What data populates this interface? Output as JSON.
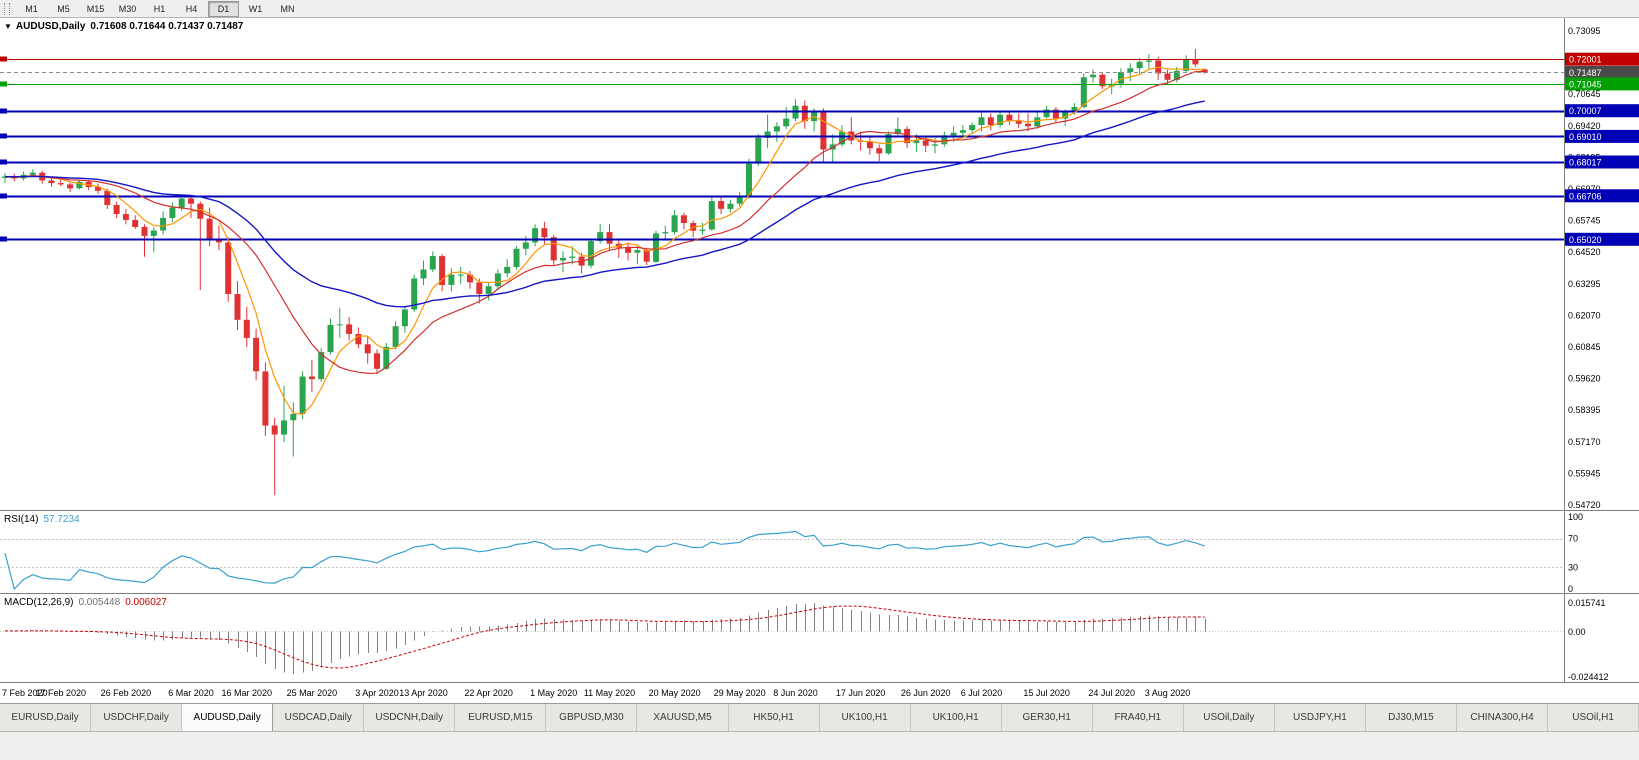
{
  "icons": {
    "dropdown_arrow": "▼"
  },
  "toolbar": {
    "timeframes": [
      "M1",
      "M5",
      "M15",
      "M30",
      "H1",
      "H4",
      "D1",
      "W1",
      "MN"
    ],
    "active": "D1"
  },
  "chart_data": {
    "type": "candlestick",
    "symbol": "AUDUSD",
    "timeframe": "Daily",
    "title": "AUDUSD,Daily",
    "ohlc_text": "0.71608 0.71644 0.71437 0.71487",
    "current": {
      "open": 0.71608,
      "high": 0.71644,
      "low": 0.71437,
      "close": 0.71487
    },
    "colors": {
      "bull": "#2aa44f",
      "bear": "#e03232",
      "background": "#ffffff",
      "axis_text": "#000000"
    },
    "y_axis": {
      "max": 0.73599,
      "min": 0.54526,
      "ticks": [
        "0.73095",
        "0.71870",
        "0.70645",
        "0.69420",
        "0.68195",
        "0.66970",
        "0.65745",
        "0.64520",
        "0.63295",
        "0.62070",
        "0.60845",
        "0.59620",
        "0.58395",
        "0.57170",
        "0.55945",
        "0.54720"
      ]
    },
    "x_labels": [
      {
        "label": "7 Feb 2020",
        "i": 0
      },
      {
        "label": "17 Feb 2020",
        "i": 6
      },
      {
        "label": "26 Feb 2020",
        "i": 13
      },
      {
        "label": "6 Mar 2020",
        "i": 20
      },
      {
        "label": "16 Mar 2020",
        "i": 26
      },
      {
        "label": "25 Mar 2020",
        "i": 33
      },
      {
        "label": "3 Apr 2020",
        "i": 40
      },
      {
        "label": "13 Apr 2020",
        "i": 45
      },
      {
        "label": "22 Apr 2020",
        "i": 52
      },
      {
        "label": "1 May 2020",
        "i": 59
      },
      {
        "label": "11 May 2020",
        "i": 65
      },
      {
        "label": "20 May 2020",
        "i": 72
      },
      {
        "label": "29 May 2020",
        "i": 79
      },
      {
        "label": "8 Jun 2020",
        "i": 85
      },
      {
        "label": "17 Jun 2020",
        "i": 92
      },
      {
        "label": "26 Jun 2020",
        "i": 99
      },
      {
        "label": "6 Jul 2020",
        "i": 105
      },
      {
        "label": "15 Jul 2020",
        "i": 112
      },
      {
        "label": "24 Jul 2020",
        "i": 119
      },
      {
        "label": "3 Aug 2020",
        "i": 125
      }
    ],
    "h_lines": [
      {
        "price": 0.72001,
        "color": "#c00000",
        "width": 1
      },
      {
        "price": 0.71045,
        "color": "#00a000",
        "width": 1
      },
      {
        "price": 0.70007,
        "color": "#0000b4",
        "width": 2
      },
      {
        "price": 0.6901,
        "color": "#0000b4",
        "width": 2
      },
      {
        "price": 0.68017,
        "color": "#0000b4",
        "width": 2
      },
      {
        "price": 0.66706,
        "color": "#0000b4",
        "width": 2
      },
      {
        "price": 0.6502,
        "color": "#0000b4",
        "width": 2
      }
    ],
    "price_badges": [
      {
        "text": "0.72001",
        "price": 0.72001,
        "color": "#c00000"
      },
      {
        "text": "0.71487",
        "price": 0.71487,
        "color": "#4a4a4a"
      },
      {
        "text": "0.71045",
        "price": 0.71045,
        "color": "#00a000"
      },
      {
        "text": "0.70007",
        "price": 0.70007,
        "color": "#0000b4"
      },
      {
        "text": "0.69010",
        "price": 0.6901,
        "color": "#0000b4"
      },
      {
        "text": "0.68017",
        "price": 0.68017,
        "color": "#0000b4"
      },
      {
        "text": "0.66706",
        "price": 0.66706,
        "color": "#0000b4"
      },
      {
        "text": "0.65020",
        "price": 0.6502,
        "color": "#0000b4"
      }
    ],
    "moving_averages": [
      {
        "name": "ma-fast",
        "type": "sma",
        "period": 5,
        "color": "#ff9500",
        "width": 1.2
      },
      {
        "name": "ma-mid",
        "type": "sma",
        "period": 13,
        "color": "#d32f2f",
        "width": 1.2
      },
      {
        "name": "ma-slow",
        "type": "ema",
        "period": 34,
        "color": "#1515c8",
        "width": 1.4
      }
    ],
    "rsi": {
      "label": "RSI(14)",
      "value": "57.7234",
      "period": 14,
      "color": "#3ba0d0",
      "levels": [
        70,
        30
      ],
      "axis_labels": [
        "100",
        "70",
        "30",
        "0"
      ]
    },
    "macd": {
      "label": "MACD(12,26,9)",
      "values": [
        "0.005448",
        "0.006027"
      ],
      "fast": 12,
      "slow": 26,
      "signal_period": 9,
      "hist_color": "#808080",
      "signal_color": "#cc0000",
      "axis_labels": [
        "0.015741",
        "0.00",
        "-0.024412"
      ]
    },
    "candles": [
      [
        0.674,
        0.6758,
        0.672,
        0.6745
      ],
      [
        0.6745,
        0.6756,
        0.6726,
        0.6738
      ],
      [
        0.6738,
        0.6765,
        0.673,
        0.6752
      ],
      [
        0.6752,
        0.6774,
        0.6744,
        0.676
      ],
      [
        0.676,
        0.6768,
        0.6718,
        0.673
      ],
      [
        0.673,
        0.6742,
        0.6705,
        0.672
      ],
      [
        0.672,
        0.6736,
        0.6708,
        0.6715
      ],
      [
        0.6715,
        0.6725,
        0.6685,
        0.67
      ],
      [
        0.67,
        0.6732,
        0.6695,
        0.6725
      ],
      [
        0.6725,
        0.673,
        0.6692,
        0.6705
      ],
      [
        0.6705,
        0.6718,
        0.6678,
        0.669
      ],
      [
        0.669,
        0.6698,
        0.662,
        0.6635
      ],
      [
        0.6635,
        0.6648,
        0.6585,
        0.66
      ],
      [
        0.66,
        0.662,
        0.656,
        0.6577
      ],
      [
        0.6577,
        0.6595,
        0.6542,
        0.655
      ],
      [
        0.655,
        0.656,
        0.6434,
        0.6515
      ],
      [
        0.6515,
        0.6548,
        0.6452,
        0.6536
      ],
      [
        0.6536,
        0.661,
        0.652,
        0.6585
      ],
      [
        0.6585,
        0.6645,
        0.657,
        0.6625
      ],
      [
        0.6625,
        0.6665,
        0.6612,
        0.666
      ],
      [
        0.666,
        0.667,
        0.6585,
        0.664
      ],
      [
        0.664,
        0.6648,
        0.6305,
        0.6582
      ],
      [
        0.6582,
        0.6625,
        0.6475,
        0.65
      ],
      [
        0.65,
        0.6555,
        0.646,
        0.649
      ],
      [
        0.649,
        0.651,
        0.626,
        0.629
      ],
      [
        0.629,
        0.634,
        0.615,
        0.619
      ],
      [
        0.619,
        0.624,
        0.6085,
        0.612
      ],
      [
        0.612,
        0.6155,
        0.5955,
        0.599
      ],
      [
        0.599,
        0.6025,
        0.574,
        0.578
      ],
      [
        0.578,
        0.581,
        0.551,
        0.5745
      ],
      [
        0.5745,
        0.5935,
        0.5715,
        0.58
      ],
      [
        0.58,
        0.587,
        0.566,
        0.5825
      ],
      [
        0.5825,
        0.599,
        0.5805,
        0.597
      ],
      [
        0.597,
        0.6035,
        0.591,
        0.596
      ],
      [
        0.596,
        0.608,
        0.595,
        0.6065
      ],
      [
        0.6065,
        0.6195,
        0.6055,
        0.617
      ],
      [
        0.617,
        0.6235,
        0.612,
        0.6172
      ],
      [
        0.6172,
        0.62,
        0.611,
        0.6135
      ],
      [
        0.6135,
        0.616,
        0.608,
        0.6095
      ],
      [
        0.6095,
        0.6125,
        0.602,
        0.606
      ],
      [
        0.606,
        0.6075,
        0.598,
        0.6
      ],
      [
        0.6,
        0.61,
        0.5995,
        0.6085
      ],
      [
        0.6085,
        0.6185,
        0.6075,
        0.6165
      ],
      [
        0.6165,
        0.6245,
        0.614,
        0.623
      ],
      [
        0.623,
        0.6365,
        0.622,
        0.635
      ],
      [
        0.635,
        0.642,
        0.6325,
        0.6385
      ],
      [
        0.6385,
        0.6455,
        0.6375,
        0.6437
      ],
      [
        0.6437,
        0.6445,
        0.63,
        0.6325
      ],
      [
        0.6325,
        0.639,
        0.63,
        0.6365
      ],
      [
        0.6365,
        0.6395,
        0.633,
        0.6365
      ],
      [
        0.6365,
        0.638,
        0.631,
        0.6335
      ],
      [
        0.6335,
        0.635,
        0.6253,
        0.629
      ],
      [
        0.629,
        0.6335,
        0.6265,
        0.632
      ],
      [
        0.632,
        0.6385,
        0.6305,
        0.637
      ],
      [
        0.637,
        0.6425,
        0.6355,
        0.6395
      ],
      [
        0.6395,
        0.6475,
        0.6385,
        0.6465
      ],
      [
        0.6465,
        0.6515,
        0.644,
        0.649
      ],
      [
        0.649,
        0.656,
        0.6475,
        0.6545
      ],
      [
        0.6545,
        0.657,
        0.648,
        0.651
      ],
      [
        0.651,
        0.652,
        0.64,
        0.642
      ],
      [
        0.642,
        0.6455,
        0.6375,
        0.643
      ],
      [
        0.643,
        0.6475,
        0.6405,
        0.6435
      ],
      [
        0.6435,
        0.645,
        0.637,
        0.64
      ],
      [
        0.64,
        0.6505,
        0.639,
        0.6495
      ],
      [
        0.6495,
        0.656,
        0.6485,
        0.653
      ],
      [
        0.653,
        0.656,
        0.646,
        0.6485
      ],
      [
        0.6485,
        0.6505,
        0.643,
        0.647
      ],
      [
        0.647,
        0.649,
        0.642,
        0.645
      ],
      [
        0.645,
        0.6475,
        0.6405,
        0.646
      ],
      [
        0.646,
        0.647,
        0.6402,
        0.6415
      ],
      [
        0.6415,
        0.6535,
        0.641,
        0.6525
      ],
      [
        0.6525,
        0.6555,
        0.6505,
        0.653
      ],
      [
        0.653,
        0.6615,
        0.652,
        0.6595
      ],
      [
        0.6595,
        0.6605,
        0.654,
        0.6565
      ],
      [
        0.6565,
        0.6575,
        0.651,
        0.6535
      ],
      [
        0.6535,
        0.6565,
        0.652,
        0.654
      ],
      [
        0.654,
        0.6665,
        0.6535,
        0.665
      ],
      [
        0.665,
        0.667,
        0.66,
        0.662
      ],
      [
        0.662,
        0.6655,
        0.6605,
        0.664
      ],
      [
        0.664,
        0.6685,
        0.663,
        0.6665
      ],
      [
        0.6665,
        0.6815,
        0.666,
        0.6795
      ],
      [
        0.6795,
        0.691,
        0.6785,
        0.6895
      ],
      [
        0.6895,
        0.6985,
        0.6855,
        0.692
      ],
      [
        0.692,
        0.6955,
        0.688,
        0.694
      ],
      [
        0.694,
        0.7015,
        0.693,
        0.697
      ],
      [
        0.697,
        0.7045,
        0.696,
        0.702
      ],
      [
        0.702,
        0.704,
        0.693,
        0.696
      ],
      [
        0.696,
        0.701,
        0.692,
        0.7
      ],
      [
        0.7,
        0.701,
        0.68,
        0.685
      ],
      [
        0.685,
        0.691,
        0.68,
        0.687
      ],
      [
        0.687,
        0.6945,
        0.686,
        0.692
      ],
      [
        0.692,
        0.6975,
        0.687,
        0.6885
      ],
      [
        0.6885,
        0.692,
        0.6845,
        0.688
      ],
      [
        0.688,
        0.6905,
        0.683,
        0.6855
      ],
      [
        0.6855,
        0.687,
        0.6805,
        0.6835
      ],
      [
        0.6835,
        0.692,
        0.683,
        0.691
      ],
      [
        0.691,
        0.6975,
        0.6905,
        0.693
      ],
      [
        0.693,
        0.694,
        0.6855,
        0.6875
      ],
      [
        0.6875,
        0.691,
        0.684,
        0.6885
      ],
      [
        0.6885,
        0.69,
        0.684,
        0.6865
      ],
      [
        0.6865,
        0.6895,
        0.6835,
        0.687
      ],
      [
        0.687,
        0.692,
        0.686,
        0.6905
      ],
      [
        0.6905,
        0.694,
        0.688,
        0.6915
      ],
      [
        0.6915,
        0.6945,
        0.69,
        0.6925
      ],
      [
        0.6925,
        0.6955,
        0.691,
        0.6945
      ],
      [
        0.6945,
        0.6995,
        0.692,
        0.6975
      ],
      [
        0.6975,
        0.699,
        0.6925,
        0.6945
      ],
      [
        0.6945,
        0.7,
        0.6935,
        0.6985
      ],
      [
        0.6985,
        0.7,
        0.6945,
        0.696
      ],
      [
        0.696,
        0.699,
        0.6935,
        0.695
      ],
      [
        0.695,
        0.699,
        0.692,
        0.694
      ],
      [
        0.694,
        0.6995,
        0.693,
        0.6975
      ],
      [
        0.6975,
        0.702,
        0.697,
        0.7005
      ],
      [
        0.7005,
        0.7015,
        0.6955,
        0.697
      ],
      [
        0.697,
        0.7005,
        0.694,
        0.6995
      ],
      [
        0.6995,
        0.703,
        0.6985,
        0.7015
      ],
      [
        0.7015,
        0.7145,
        0.701,
        0.713
      ],
      [
        0.713,
        0.716,
        0.711,
        0.714
      ],
      [
        0.714,
        0.715,
        0.7085,
        0.7095
      ],
      [
        0.7095,
        0.7125,
        0.7065,
        0.7105
      ],
      [
        0.7105,
        0.7165,
        0.709,
        0.715
      ],
      [
        0.715,
        0.7185,
        0.7115,
        0.7165
      ],
      [
        0.7165,
        0.7205,
        0.714,
        0.719
      ],
      [
        0.719,
        0.722,
        0.716,
        0.7195
      ],
      [
        0.7195,
        0.721,
        0.712,
        0.7145
      ],
      [
        0.7145,
        0.716,
        0.71,
        0.712
      ],
      [
        0.712,
        0.717,
        0.711,
        0.7155
      ],
      [
        0.7155,
        0.7215,
        0.715,
        0.72
      ],
      [
        0.72,
        0.724,
        0.717,
        0.718
      ],
      [
        0.71608,
        0.71644,
        0.71437,
        0.71487
      ]
    ]
  },
  "tabs": {
    "active_index": 2,
    "items": [
      "EURUSD,Daily",
      "USDCHF,Daily",
      "AUDUSD,Daily",
      "USDCAD,Daily",
      "USDCNH,Daily",
      "EURUSD,M15",
      "GBPUSD,M30",
      "XAUUSD,M5",
      "HK50,H1",
      "UK100,H1",
      "UK100,H1",
      "GER30,H1",
      "FRA40,H1",
      "USOil,Daily",
      "USDJPY,H1",
      "DJ30,M15",
      "CHINA300,H4",
      "USOil,H1"
    ]
  }
}
